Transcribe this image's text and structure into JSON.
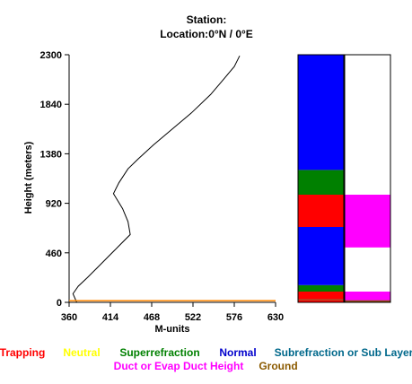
{
  "header": {
    "station_label": "Station:",
    "location_label": "Location:",
    "location_value": "0°N /   0°E"
  },
  "chart_data": {
    "type": "line",
    "xlabel": "M-units",
    "ylabel": "Height (meters)",
    "xlim": [
      360,
      630
    ],
    "ylim": [
      0,
      2300
    ],
    "xticks": [
      "360",
      "414",
      "468",
      "522",
      "576",
      "630"
    ],
    "yticks": [
      "0",
      "460",
      "920",
      "1380",
      "1840",
      "2300"
    ],
    "series": [
      {
        "color": "#000000",
        "x": [
          370,
          365,
          372,
          384,
          398,
          412,
          426,
          440,
          437,
          430,
          418,
          425,
          437,
          450,
          470,
          495,
          520,
          545,
          563,
          576,
          583
        ],
        "y": [
          0,
          80,
          150,
          230,
          330,
          430,
          530,
          630,
          750,
          870,
          1010,
          1110,
          1240,
          1330,
          1460,
          1610,
          1760,
          1930,
          2080,
          2190,
          2290
        ]
      },
      {
        "color": "#ff8800",
        "x": [
          360,
          630
        ],
        "y": [
          16,
          16
        ]
      }
    ],
    "strips": [
      {
        "segments": [
          {
            "from": 0,
            "to": 20,
            "category": "Trapping",
            "color": "#ff0000"
          },
          {
            "from": 20,
            "to": 30,
            "category": "Ground",
            "color": "#8b4513"
          },
          {
            "from": 30,
            "to": 100,
            "category": "Trapping",
            "color": "#ff0000"
          },
          {
            "from": 100,
            "to": 160,
            "category": "Superrefraction",
            "color": "#008000"
          },
          {
            "from": 160,
            "to": 700,
            "category": "Normal",
            "color": "#0000ff"
          },
          {
            "from": 700,
            "to": 1000,
            "category": "Trapping",
            "color": "#ff0000"
          },
          {
            "from": 1000,
            "to": 1230,
            "category": "Superrefraction",
            "color": "#008000"
          },
          {
            "from": 1230,
            "to": 2300,
            "category": "Normal",
            "color": "#0000ff"
          }
        ]
      },
      {
        "segments": [
          {
            "from": 0,
            "to": 20,
            "category": "Ground",
            "color": "#8b4513"
          },
          {
            "from": 20,
            "to": 100,
            "category": "Duct or Evap Duct Height",
            "color": "#ff00ff"
          },
          {
            "from": 100,
            "to": 510,
            "category": "None",
            "color": "#ffffff"
          },
          {
            "from": 510,
            "to": 1000,
            "category": "Duct or Evap Duct Height",
            "color": "#ff00ff"
          },
          {
            "from": 1000,
            "to": 2300,
            "category": "None",
            "color": "#ffffff"
          }
        ]
      }
    ],
    "legend": [
      {
        "label": "Trapping",
        "color": "#ff0000"
      },
      {
        "label": "Neutral",
        "color": "#ffff00"
      },
      {
        "label": "Superrefraction",
        "color": "#008000"
      },
      {
        "label": "Normal",
        "color": "#0000cc"
      },
      {
        "label": "Subrefraction or Sub Layer",
        "color": "#00688b"
      },
      {
        "label": "Duct or Evap Duct Height",
        "color": "#ff00ff"
      },
      {
        "label": "Ground",
        "color": "#8b5a00"
      }
    ]
  }
}
